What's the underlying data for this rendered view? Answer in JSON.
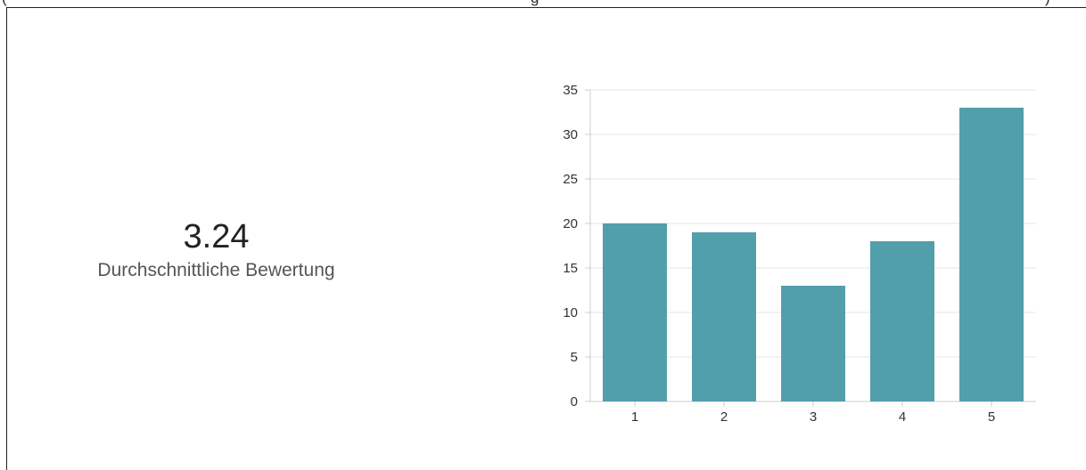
{
  "header_fragments": {
    "left": "(",
    "middle": "g",
    "right": ")"
  },
  "stat": {
    "value": "3.24",
    "label": "Durchschnittliche Bewertung"
  },
  "colors": {
    "bar": "#529fac",
    "grid": "#e6e6e6",
    "axis": "#cccccc",
    "text": "#333333"
  },
  "chart_data": {
    "type": "bar",
    "categories": [
      "1",
      "2",
      "3",
      "4",
      "5"
    ],
    "values": [
      20,
      19,
      13,
      18,
      33
    ],
    "ylim": [
      0,
      35
    ],
    "yticks": [
      "0",
      "5",
      "10",
      "15",
      "20",
      "25",
      "30",
      "35"
    ],
    "grid": true
  }
}
